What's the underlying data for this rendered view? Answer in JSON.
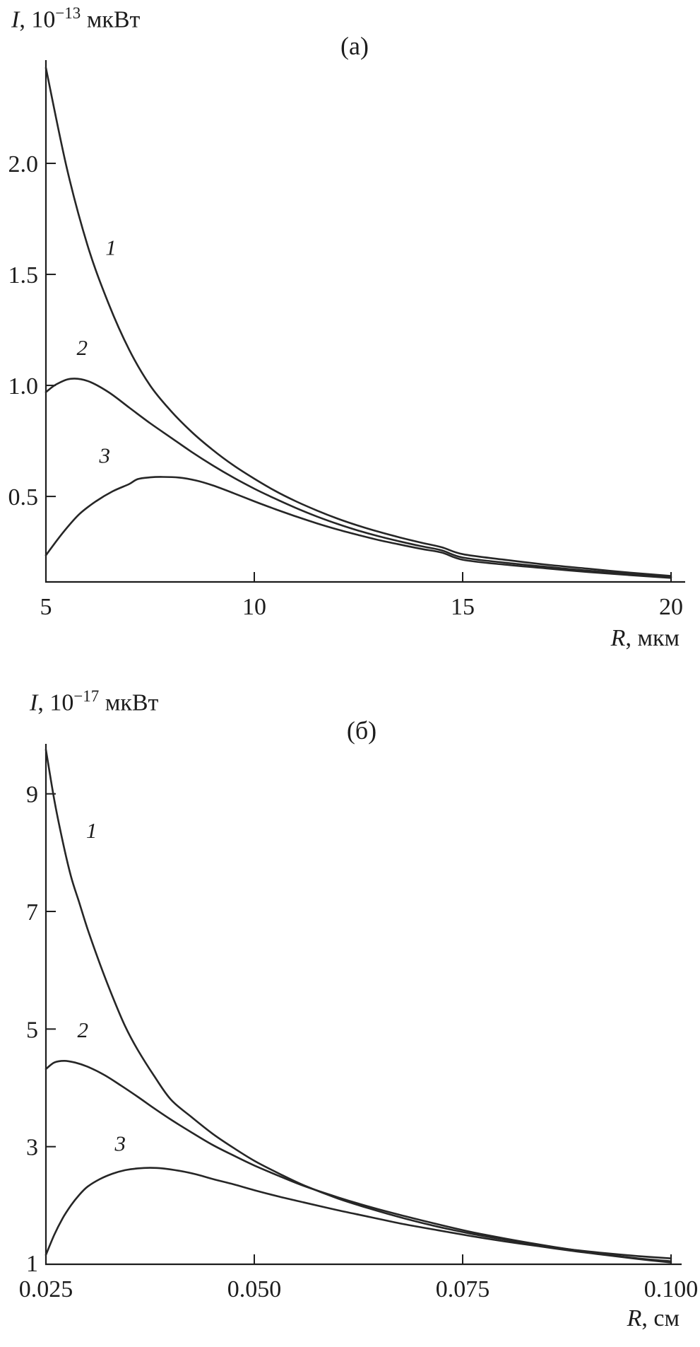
{
  "figure": {
    "background": "#ffffff",
    "ink": "#1c1c1c",
    "curve_color": "#262626"
  },
  "chart_data": [
    {
      "type": "line",
      "tag": "(а)",
      "y_title": {
        "var": "I",
        "pre": ", ",
        "base": "10",
        "exp": "−13",
        "unit": " мкВт"
      },
      "x_title": {
        "var": "R",
        "rest": ", мкм"
      },
      "ylabel": "I, 10^-13 мкВт",
      "xlabel": "R, мкм",
      "xlim": [
        5,
        20
      ],
      "ylim": [
        0.115,
        2.465
      ],
      "xticks": [
        {
          "v": 5,
          "label": "5"
        },
        {
          "v": 10,
          "label": "10"
        },
        {
          "v": 15,
          "label": "15"
        },
        {
          "v": 20,
          "label": "20"
        }
      ],
      "yticks": [
        {
          "v": 0.5,
          "label": "0.5"
        },
        {
          "v": 1.0,
          "label": "1.0"
        },
        {
          "v": 1.5,
          "label": "1.5"
        },
        {
          "v": 2.0,
          "label": "2.0"
        }
      ],
      "origin_label": "",
      "grid": false,
      "legend": "inline curve numbers",
      "series": [
        {
          "name": "1",
          "points": [
            [
              5,
              2.43
            ],
            [
              5.5,
              1.98
            ],
            [
              6,
              1.63
            ],
            [
              6.5,
              1.37
            ],
            [
              7,
              1.16
            ],
            [
              7.5,
              1.0
            ],
            [
              8,
              0.885
            ],
            [
              8.5,
              0.79
            ],
            [
              9,
              0.71
            ],
            [
              9.5,
              0.64
            ],
            [
              10,
              0.58
            ],
            [
              10.5,
              0.525
            ],
            [
              11,
              0.478
            ],
            [
              11.5,
              0.437
            ],
            [
              12,
              0.4
            ],
            [
              12.5,
              0.368
            ],
            [
              13,
              0.34
            ],
            [
              13.5,
              0.315
            ],
            [
              14,
              0.292
            ],
            [
              14.5,
              0.271
            ],
            [
              15,
              0.24
            ],
            [
              16,
              0.215
            ],
            [
              17,
              0.193
            ],
            [
              18,
              0.175
            ],
            [
              19,
              0.157
            ],
            [
              20,
              0.142
            ]
          ]
        },
        {
          "name": "2",
          "points": [
            [
              5,
              0.97
            ],
            [
              5.25,
              1.005
            ],
            [
              5.6,
              1.03
            ],
            [
              6,
              1.02
            ],
            [
              6.5,
              0.97
            ],
            [
              7,
              0.9
            ],
            [
              7.5,
              0.83
            ],
            [
              8,
              0.765
            ],
            [
              8.5,
              0.7
            ],
            [
              9,
              0.64
            ],
            [
              9.5,
              0.585
            ],
            [
              10,
              0.535
            ],
            [
              10.5,
              0.49
            ],
            [
              11,
              0.448
            ],
            [
              11.5,
              0.41
            ],
            [
              12,
              0.376
            ],
            [
              12.5,
              0.346
            ],
            [
              13,
              0.32
            ],
            [
              13.5,
              0.297
            ],
            [
              14,
              0.276
            ],
            [
              14.5,
              0.257
            ],
            [
              15,
              0.225
            ],
            [
              16,
              0.202
            ],
            [
              17,
              0.183
            ],
            [
              18,
              0.166
            ],
            [
              19,
              0.151
            ],
            [
              20,
              0.137
            ]
          ]
        },
        {
          "name": "3",
          "points": [
            [
              5,
              0.235
            ],
            [
              5.4,
              0.335
            ],
            [
              5.8,
              0.42
            ],
            [
              6.2,
              0.478
            ],
            [
              6.6,
              0.523
            ],
            [
              7,
              0.556
            ],
            [
              7.2,
              0.578
            ],
            [
              7.5,
              0.586
            ],
            [
              7.8,
              0.588
            ],
            [
              8.2,
              0.585
            ],
            [
              8.6,
              0.572
            ],
            [
              9,
              0.55
            ],
            [
              9.5,
              0.515
            ],
            [
              10,
              0.478
            ],
            [
              10.5,
              0.443
            ],
            [
              11,
              0.41
            ],
            [
              11.5,
              0.379
            ],
            [
              12,
              0.351
            ],
            [
              12.5,
              0.326
            ],
            [
              13,
              0.303
            ],
            [
              13.5,
              0.283
            ],
            [
              14,
              0.264
            ],
            [
              14.5,
              0.247
            ],
            [
              15,
              0.215
            ],
            [
              16,
              0.193
            ],
            [
              17,
              0.176
            ],
            [
              18,
              0.16
            ],
            [
              19,
              0.146
            ],
            [
              20,
              0.133
            ]
          ]
        }
      ],
      "annotations": [
        {
          "label": "1",
          "fx": 0.104,
          "fy": 0.373
        },
        {
          "label": "2",
          "fx": 0.058,
          "fy": 0.565
        },
        {
          "label": "3",
          "fx": 0.094,
          "fy": 0.772
        }
      ]
    },
    {
      "type": "line",
      "tag": "(б)",
      "y_title": {
        "var": "I",
        "pre": ", ",
        "base": "10",
        "exp": "−17",
        "unit": " мкВт"
      },
      "x_title": {
        "var": "R",
        "rest": ", см"
      },
      "ylabel": "I, 10^-17 мкВт",
      "xlabel": "R, см",
      "xlim": [
        0.025,
        0.1
      ],
      "ylim": [
        1,
        9.85
      ],
      "xticks": [
        {
          "v": 0.025,
          "label": "0.025"
        },
        {
          "v": 0.05,
          "label": "0.050"
        },
        {
          "v": 0.075,
          "label": "0.075"
        },
        {
          "v": 0.1,
          "label": "0.100"
        }
      ],
      "yticks": [
        {
          "v": 3,
          "label": "3"
        },
        {
          "v": 5,
          "label": "5"
        },
        {
          "v": 7,
          "label": "7"
        },
        {
          "v": 9,
          "label": "9"
        }
      ],
      "origin_label": "1",
      "grid": false,
      "legend": "inline curve numbers",
      "series": [
        {
          "name": "1",
          "points": [
            [
              0.025,
              9.75
            ],
            [
              0.026,
              8.9
            ],
            [
              0.027,
              8.2
            ],
            [
              0.028,
              7.6
            ],
            [
              0.029,
              7.15
            ],
            [
              0.03,
              6.7
            ],
            [
              0.0315,
              6.1
            ],
            [
              0.033,
              5.55
            ],
            [
              0.0345,
              5.05
            ],
            [
              0.036,
              4.65
            ],
            [
              0.038,
              4.2
            ],
            [
              0.04,
              3.8
            ],
            [
              0.0425,
              3.5
            ],
            [
              0.045,
              3.22
            ],
            [
              0.0475,
              2.98
            ],
            [
              0.05,
              2.76
            ],
            [
              0.053,
              2.54
            ],
            [
              0.056,
              2.34
            ],
            [
              0.06,
              2.12
            ],
            [
              0.064,
              1.94
            ],
            [
              0.068,
              1.78
            ],
            [
              0.072,
              1.64
            ],
            [
              0.076,
              1.52
            ],
            [
              0.08,
              1.42
            ],
            [
              0.084,
              1.33
            ],
            [
              0.088,
              1.25
            ],
            [
              0.092,
              1.19
            ],
            [
              0.096,
              1.14
            ],
            [
              0.1,
              1.1
            ]
          ]
        },
        {
          "name": "2",
          "points": [
            [
              0.025,
              4.32
            ],
            [
              0.026,
              4.43
            ],
            [
              0.0272,
              4.46
            ],
            [
              0.0285,
              4.43
            ],
            [
              0.03,
              4.36
            ],
            [
              0.032,
              4.22
            ],
            [
              0.034,
              4.04
            ],
            [
              0.036,
              3.85
            ],
            [
              0.038,
              3.65
            ],
            [
              0.04,
              3.46
            ],
            [
              0.0425,
              3.24
            ],
            [
              0.045,
              3.03
            ],
            [
              0.0475,
              2.85
            ],
            [
              0.05,
              2.68
            ],
            [
              0.053,
              2.5
            ],
            [
              0.056,
              2.33
            ],
            [
              0.06,
              2.14
            ],
            [
              0.064,
              1.97
            ],
            [
              0.068,
              1.82
            ],
            [
              0.072,
              1.68
            ],
            [
              0.076,
              1.55
            ],
            [
              0.08,
              1.44
            ],
            [
              0.084,
              1.34
            ],
            [
              0.088,
              1.25
            ],
            [
              0.092,
              1.17
            ],
            [
              0.096,
              1.1
            ],
            [
              0.1,
              1.05
            ]
          ]
        },
        {
          "name": "3",
          "points": [
            [
              0.025,
              1.16
            ],
            [
              0.026,
              1.5
            ],
            [
              0.027,
              1.78
            ],
            [
              0.028,
              2.0
            ],
            [
              0.029,
              2.18
            ],
            [
              0.03,
              2.32
            ],
            [
              0.0315,
              2.45
            ],
            [
              0.033,
              2.54
            ],
            [
              0.0345,
              2.6
            ],
            [
              0.036,
              2.63
            ],
            [
              0.0375,
              2.64
            ],
            [
              0.039,
              2.63
            ],
            [
              0.041,
              2.59
            ],
            [
              0.043,
              2.53
            ],
            [
              0.045,
              2.45
            ],
            [
              0.0475,
              2.36
            ],
            [
              0.05,
              2.26
            ],
            [
              0.053,
              2.15
            ],
            [
              0.056,
              2.05
            ],
            [
              0.06,
              1.92
            ],
            [
              0.064,
              1.8
            ],
            [
              0.068,
              1.68
            ],
            [
              0.072,
              1.58
            ],
            [
              0.076,
              1.48
            ],
            [
              0.08,
              1.39
            ],
            [
              0.084,
              1.31
            ],
            [
              0.088,
              1.23
            ],
            [
              0.092,
              1.16
            ],
            [
              0.096,
              1.09
            ],
            [
              0.1,
              1.03
            ]
          ]
        }
      ],
      "annotations": [
        {
          "label": "1",
          "fx": 0.073,
          "fy": 0.181
        },
        {
          "label": "2",
          "fx": 0.059,
          "fy": 0.564
        },
        {
          "label": "3",
          "fx": 0.119,
          "fy": 0.782
        }
      ]
    }
  ]
}
